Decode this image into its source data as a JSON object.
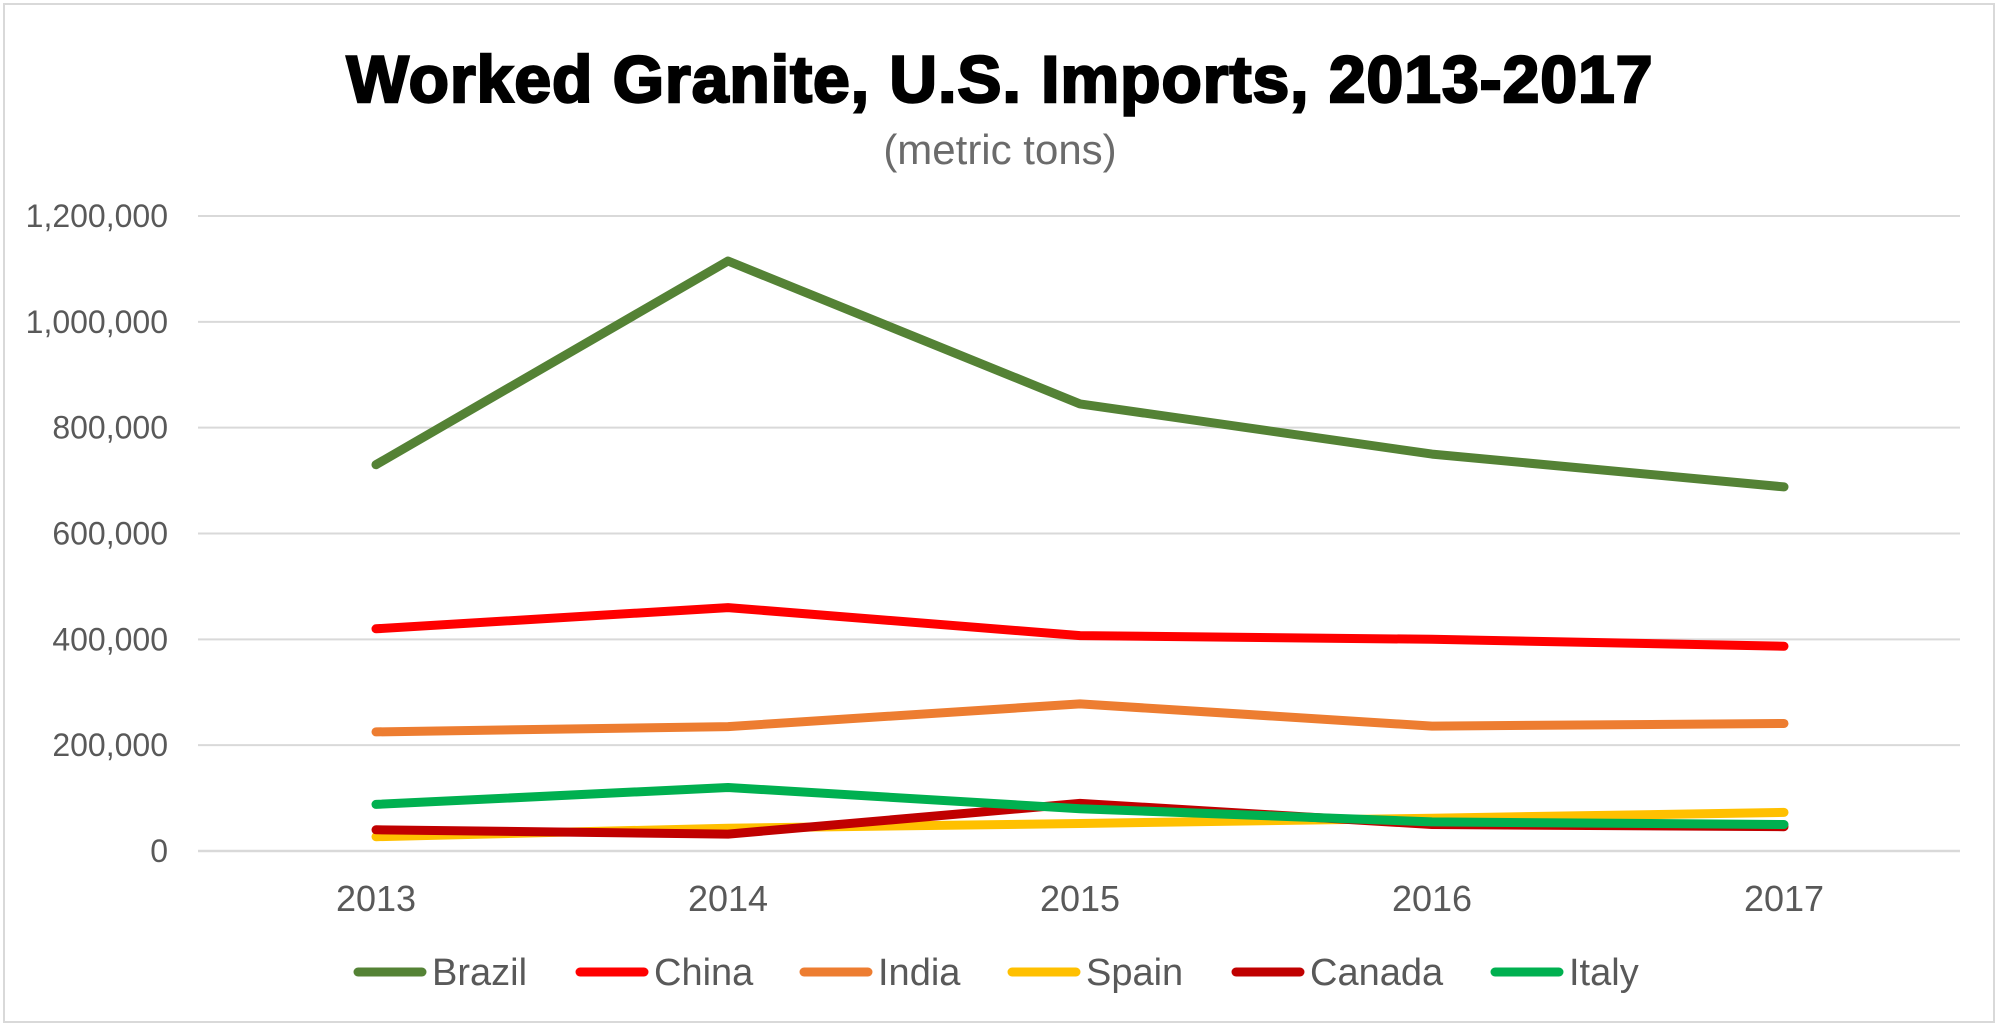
{
  "chart_data": {
    "type": "line",
    "title": "Worked Granite, U.S. Imports, 2013-2017",
    "subtitle": "(metric tons)",
    "xlabel": "",
    "ylabel": "",
    "x": [
      "2013",
      "2014",
      "2015",
      "2016",
      "2017"
    ],
    "ylim": [
      0,
      1200000
    ],
    "ytick_values": [
      0,
      200000,
      400000,
      600000,
      800000,
      1000000,
      1200000
    ],
    "ytick_labels": [
      "0",
      "200,000",
      "400,000",
      "600,000",
      "800,000",
      "1,000,000",
      "1,200,000"
    ],
    "grid": true,
    "legend_position": "bottom",
    "series": [
      {
        "name": "Brazil",
        "color": "#548235",
        "values": [
          730000,
          1115000,
          845000,
          750000,
          688000
        ]
      },
      {
        "name": "China",
        "color": "#ff0000",
        "values": [
          420000,
          460000,
          407000,
          400000,
          387000
        ]
      },
      {
        "name": "India",
        "color": "#ed7d31",
        "values": [
          225000,
          235000,
          278000,
          236000,
          241000
        ]
      },
      {
        "name": "Spain",
        "color": "#ffc000",
        "values": [
          27000,
          43000,
          52000,
          62000,
          73000
        ]
      },
      {
        "name": "Canada",
        "color": "#c00000",
        "values": [
          40000,
          32000,
          90000,
          50000,
          46000
        ]
      },
      {
        "name": "Italy",
        "color": "#00b050",
        "values": [
          88000,
          120000,
          80000,
          55000,
          50000
        ]
      }
    ]
  }
}
